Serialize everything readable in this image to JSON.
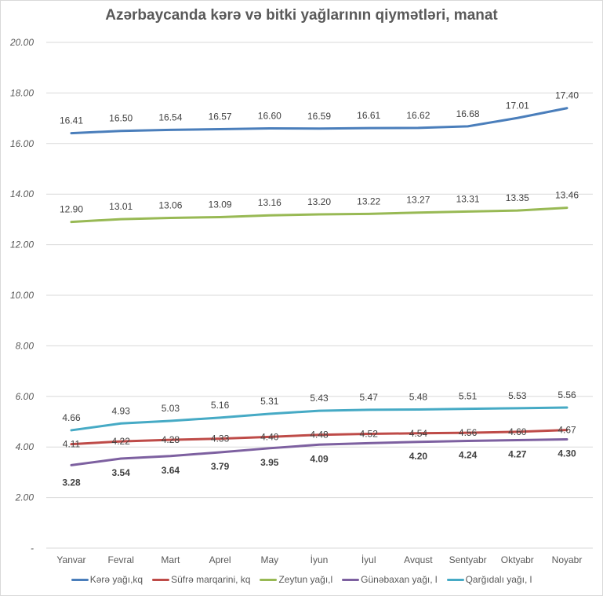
{
  "chart_data": {
    "type": "line",
    "title": "Azərbaycanda  kərə və bitki yağlarının  qiymətləri, manat",
    "xlabel": "",
    "ylabel": "",
    "ylim": [
      0,
      20
    ],
    "y_ticks": [
      "-",
      "2.00",
      "4.00",
      "6.00",
      "8.00",
      "10.00",
      "12.00",
      "14.00",
      "16.00",
      "18.00",
      "20.00"
    ],
    "grid": true,
    "legend_position": "bottom",
    "categories": [
      "Yanvar",
      "Fevral",
      "Mart",
      "Aprel",
      "May",
      "İyun",
      "İyul",
      "Avqust",
      "Sentyabr",
      "Oktyabr",
      "Noyabr"
    ],
    "series": [
      {
        "name": "Kərə yağı,kq",
        "color": "#4a7ebb",
        "label_pos": "above",
        "values": [
          16.41,
          16.5,
          16.54,
          16.57,
          16.6,
          16.59,
          16.61,
          16.62,
          16.68,
          17.01,
          17.4
        ],
        "labels": [
          "16.41",
          "16.50",
          "16.54",
          "16.57",
          "16.60",
          "16.59",
          "16.61",
          "16.62",
          "16.68",
          "17.01",
          "17.40"
        ]
      },
      {
        "name": "Süfrə marqarini, kq",
        "color": "#be4b48",
        "label_pos": "on",
        "values": [
          4.11,
          4.22,
          4.28,
          4.33,
          4.4,
          4.48,
          4.52,
          4.54,
          4.56,
          4.6,
          4.67
        ],
        "labels": [
          "4.11",
          "4.22",
          "4.28",
          "4.33",
          "4.40",
          "4.48",
          "4.52",
          "4.54",
          "4.56",
          "4.60",
          "4.67"
        ]
      },
      {
        "name": "Zeytun yağı,l",
        "color": "#98b954",
        "label_pos": "above",
        "values": [
          12.9,
          13.01,
          13.06,
          13.09,
          13.16,
          13.2,
          13.22,
          13.27,
          13.31,
          13.35,
          13.46
        ],
        "labels": [
          "12.90",
          "13.01",
          "13.06",
          "13.09",
          "13.16",
          "13.20",
          "13.22",
          "13.27",
          "13.31",
          "13.35",
          "13.46"
        ]
      },
      {
        "name": "Günəbaxan yağı, l",
        "color": "#7d60a0",
        "label_pos": "below",
        "values": [
          3.28,
          3.54,
          3.64,
          3.79,
          3.95,
          4.09,
          4.15,
          4.2,
          4.24,
          4.27,
          4.3
        ],
        "labels": [
          "3.28",
          "3.54",
          "3.64",
          "3.79",
          "3.95",
          "4.09",
          "",
          "4.20",
          "4.24",
          "4.27",
          "4.30"
        ]
      },
      {
        "name": "Qarğıdalı yağı, l",
        "color": "#46aac5",
        "label_pos": "above",
        "values": [
          4.66,
          4.93,
          5.03,
          5.16,
          5.31,
          5.43,
          5.47,
          5.48,
          5.51,
          5.53,
          5.56
        ],
        "labels": [
          "4.66",
          "4.93",
          "5.03",
          "5.16",
          "5.31",
          "5.43",
          "5.47",
          "5.48",
          "5.51",
          "5.53",
          "5.56"
        ]
      }
    ]
  }
}
